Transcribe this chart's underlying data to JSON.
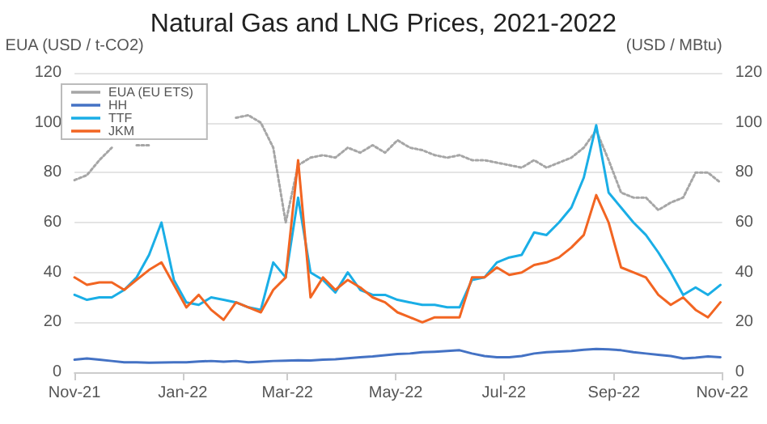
{
  "chart_data": {
    "type": "line",
    "title": "Natural Gas and LNG Prices, 2021-2022",
    "ylabel": "EUA (USD / t-CO2)",
    "y2label": "(USD / MBtu)",
    "x": [
      "2021-11-01",
      "2021-11-08",
      "2021-11-15",
      "2021-11-22",
      "2021-11-29",
      "2021-12-06",
      "2021-12-13",
      "2021-12-20",
      "2021-12-27",
      "2022-01-03",
      "2022-01-10",
      "2022-01-17",
      "2022-01-24",
      "2022-01-31",
      "2022-02-07",
      "2022-02-14",
      "2022-02-21",
      "2022-02-28",
      "2022-03-07",
      "2022-03-14",
      "2022-03-21",
      "2022-03-28",
      "2022-04-04",
      "2022-04-11",
      "2022-04-18",
      "2022-04-25",
      "2022-05-02",
      "2022-05-09",
      "2022-05-16",
      "2022-05-23",
      "2022-05-30",
      "2022-06-06",
      "2022-06-13",
      "2022-06-20",
      "2022-06-27",
      "2022-07-04",
      "2022-07-11",
      "2022-07-18",
      "2022-07-25",
      "2022-08-01",
      "2022-08-08",
      "2022-08-15",
      "2022-08-22",
      "2022-08-29",
      "2022-09-05",
      "2022-09-12",
      "2022-09-19",
      "2022-09-26",
      "2022-10-03",
      "2022-10-10",
      "2022-10-17",
      "2022-10-24",
      "2022-10-31"
    ],
    "series": [
      {
        "name": "EUA (EU ETS)",
        "color": "#a6a6a6",
        "line_style": "dotted",
        "values": [
          77,
          79,
          85,
          90,
          null,
          91,
          91,
          null,
          null,
          null,
          null,
          null,
          null,
          102,
          103,
          100,
          90,
          60,
          83,
          86,
          87,
          86,
          90,
          88,
          91,
          88,
          93,
          90,
          89,
          87,
          86,
          87,
          85,
          85,
          84,
          83,
          82,
          85,
          82,
          84,
          86,
          90,
          97,
          85,
          72,
          70,
          70,
          65,
          68,
          70,
          80,
          80,
          76
        ]
      },
      {
        "name": "HH",
        "color": "#4472c4",
        "axis": "y2",
        "values": [
          5,
          5.5,
          5,
          4.5,
          4,
          4,
          3.8,
          3.9,
          4,
          4,
          4.3,
          4.5,
          4.2,
          4.5,
          4,
          4.2,
          4.5,
          4.6,
          4.8,
          4.7,
          5,
          5.2,
          5.6,
          6,
          6.3,
          6.8,
          7.3,
          7.5,
          8,
          8.2,
          8.5,
          8.8,
          7.5,
          6.5,
          6,
          6,
          6.5,
          7.5,
          8,
          8.3,
          8.5,
          9,
          9.3,
          9.2,
          8.8,
          8,
          7.5,
          7,
          6.5,
          5.5,
          5.8,
          6.3,
          6
        ]
      },
      {
        "name": "TTF",
        "color": "#1aaee6",
        "axis": "y2",
        "values": [
          31,
          29,
          30,
          30,
          33,
          38,
          47,
          60,
          37,
          28,
          27,
          30,
          29,
          28,
          26,
          25,
          44,
          38,
          70,
          40,
          37,
          32,
          40,
          33,
          31,
          31,
          29,
          28,
          27,
          27,
          26,
          26,
          37,
          38,
          44,
          46,
          47,
          56,
          55,
          60,
          66,
          78,
          99,
          72,
          66,
          60,
          55,
          48,
          40,
          31,
          34,
          31,
          35
        ]
      },
      {
        "name": "JKM",
        "color": "#f26522",
        "axis": "y2",
        "values": [
          38,
          35,
          36,
          36,
          33,
          37,
          41,
          44,
          35,
          26,
          31,
          25,
          21,
          28,
          26,
          24,
          33,
          38,
          85,
          30,
          38,
          33,
          37,
          34,
          30,
          28,
          24,
          22,
          20,
          22,
          22,
          22,
          38,
          38,
          42,
          39,
          40,
          43,
          44,
          46,
          50,
          55,
          71,
          60,
          42,
          40,
          38,
          31,
          27,
          30,
          25,
          22,
          28
        ]
      }
    ],
    "xlim": [
      "2021-11-01",
      "2022-11-01"
    ],
    "xticks": [
      {
        "value": "2021-11-01",
        "label": "Nov-21"
      },
      {
        "value": "2022-01-01",
        "label": "Jan-22"
      },
      {
        "value": "2022-03-01",
        "label": "Mar-22"
      },
      {
        "value": "2022-05-01",
        "label": "May-22"
      },
      {
        "value": "2022-07-01",
        "label": "Jul-22"
      },
      {
        "value": "2022-09-01",
        "label": "Sep-22"
      },
      {
        "value": "2022-11-01",
        "label": "Nov-22"
      }
    ],
    "ylim": [
      0,
      120
    ],
    "yticks": [
      0,
      20,
      40,
      60,
      80,
      100,
      120
    ],
    "y2lim": [
      0,
      120
    ],
    "y2ticks": [
      0,
      20,
      40,
      60,
      80,
      100,
      120
    ],
    "grid": "y",
    "legend": "top left",
    "marker": "none",
    "line_style": "solid"
  }
}
